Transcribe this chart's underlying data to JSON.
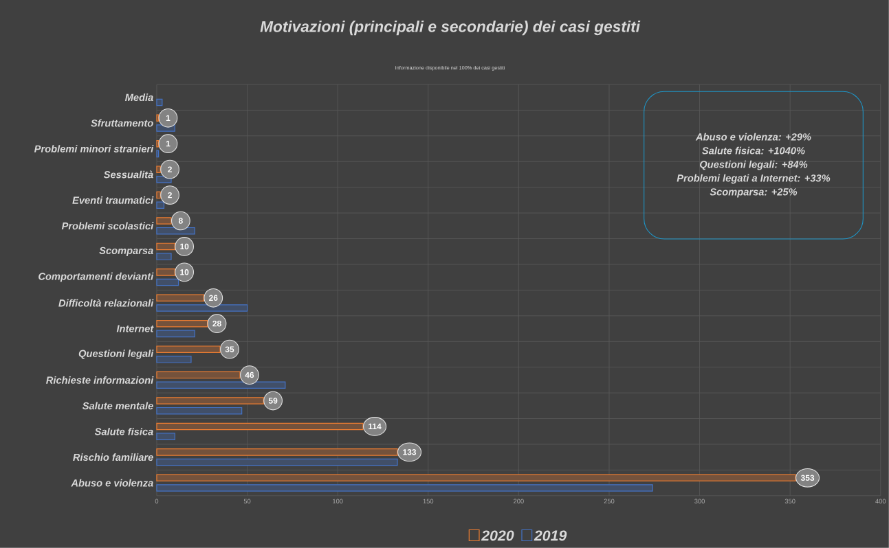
{
  "chart_data": {
    "type": "bar",
    "orientation": "horizontal",
    "title": "Motivazioni (principali e secondarie) dei casi gestiti",
    "subtitle": "Informazione disponibile nel 100% dei casi gestiti",
    "annotations": [
      "Abuso e violenza: +29%",
      "Salute fisica: +1040%",
      "Questioni legali: +84%",
      "Problemi legati a Internet: +33%",
      "Scomparsa: +25%"
    ],
    "categories": [
      "Media",
      "Sfruttamento",
      "Problemi minori stranieri",
      "Sessualità",
      "Eventi traumatici",
      "Problemi scolastici",
      "Scomparsa",
      "Comportamenti devianti",
      "Difficoltà relazionali",
      "Internet",
      "Questioni legali",
      "Richieste informazioni",
      "Salute mentale",
      "Salute fisica",
      "Rischio familiare",
      "Abuso e violenza"
    ],
    "series": [
      {
        "name": "2020",
        "color": "#ed7d31",
        "values": [
          null,
          1,
          1,
          2,
          2,
          8,
          10,
          10,
          26,
          28,
          35,
          46,
          59,
          114,
          133,
          353
        ],
        "value_labels": [
          null,
          "1",
          "1",
          "2",
          "2",
          "8",
          "10",
          "10",
          "26",
          "28",
          "35",
          "46",
          "59",
          "114",
          "133",
          "353"
        ]
      },
      {
        "name": "2019",
        "color": "#4472c4",
        "values": [
          3,
          10,
          1,
          8,
          4,
          21,
          8,
          12,
          50,
          21,
          19,
          71,
          47,
          10,
          133,
          274
        ]
      }
    ],
    "xlim": [
      0,
      400
    ],
    "xticks": [
      0,
      50,
      100,
      150,
      200,
      250,
      300,
      350,
      400
    ],
    "grid": true,
    "legend": "bottom"
  }
}
